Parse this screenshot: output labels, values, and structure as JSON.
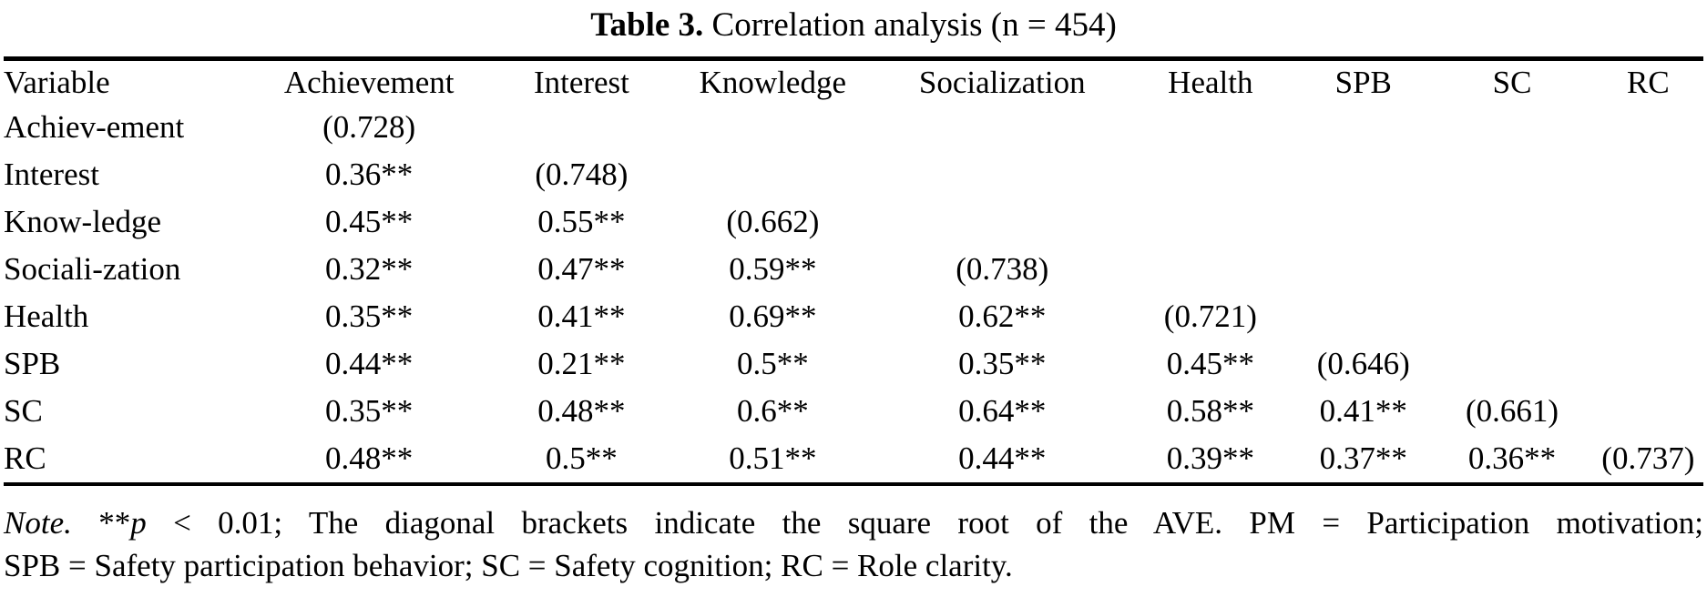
{
  "title": {
    "label": "Table 3.",
    "text": " Correlation analysis (n = 454)"
  },
  "table": {
    "columns": [
      "Variable",
      "Achievement",
      "Interest",
      "Knowledge",
      "Socialization",
      "Health",
      "SPB",
      "SC",
      "RC"
    ],
    "rows": [
      {
        "label": "Achiev-ement",
        "values": [
          "(0.728)",
          "",
          "",
          "",
          "",
          "",
          "",
          ""
        ]
      },
      {
        "label": "Interest",
        "values": [
          "0.36**",
          "(0.748)",
          "",
          "",
          "",
          "",
          "",
          ""
        ]
      },
      {
        "label": "Know-ledge",
        "values": [
          "0.45**",
          "0.55**",
          "(0.662)",
          "",
          "",
          "",
          "",
          ""
        ]
      },
      {
        "label": "Sociali-zation",
        "values": [
          "0.32**",
          "0.47**",
          "0.59**",
          "(0.738)",
          "",
          "",
          "",
          ""
        ]
      },
      {
        "label": "Health",
        "values": [
          "0.35**",
          "0.41**",
          "0.69**",
          "0.62**",
          "(0.721)",
          "",
          "",
          ""
        ]
      },
      {
        "label": "SPB",
        "values": [
          "0.44**",
          "0.21**",
          "0.5**",
          "0.35**",
          "0.45**",
          "(0.646)",
          "",
          ""
        ]
      },
      {
        "label": "SC",
        "values": [
          "0.35**",
          "0.48**",
          "0.6**",
          "0.64**",
          "0.58**",
          "0.41**",
          "(0.661)",
          ""
        ]
      },
      {
        "label": "RC",
        "values": [
          "0.48**",
          "0.5**",
          "0.51**",
          "0.44**",
          "0.39**",
          "0.37**",
          "0.36**",
          "(0.737)"
        ]
      }
    ]
  },
  "note": {
    "line1_segments": [
      {
        "text": "Note.",
        "italic": true
      },
      {
        "text": " **",
        "italic": false
      },
      {
        "text": "p",
        "italic": true
      },
      {
        "text": " < 0.01; The diagonal brackets indicate the square root of the AVE. PM = Participation motivation;",
        "italic": false
      }
    ],
    "line2": "SPB = Safety participation behavior; SC = Safety cognition; RC = Role clarity."
  }
}
